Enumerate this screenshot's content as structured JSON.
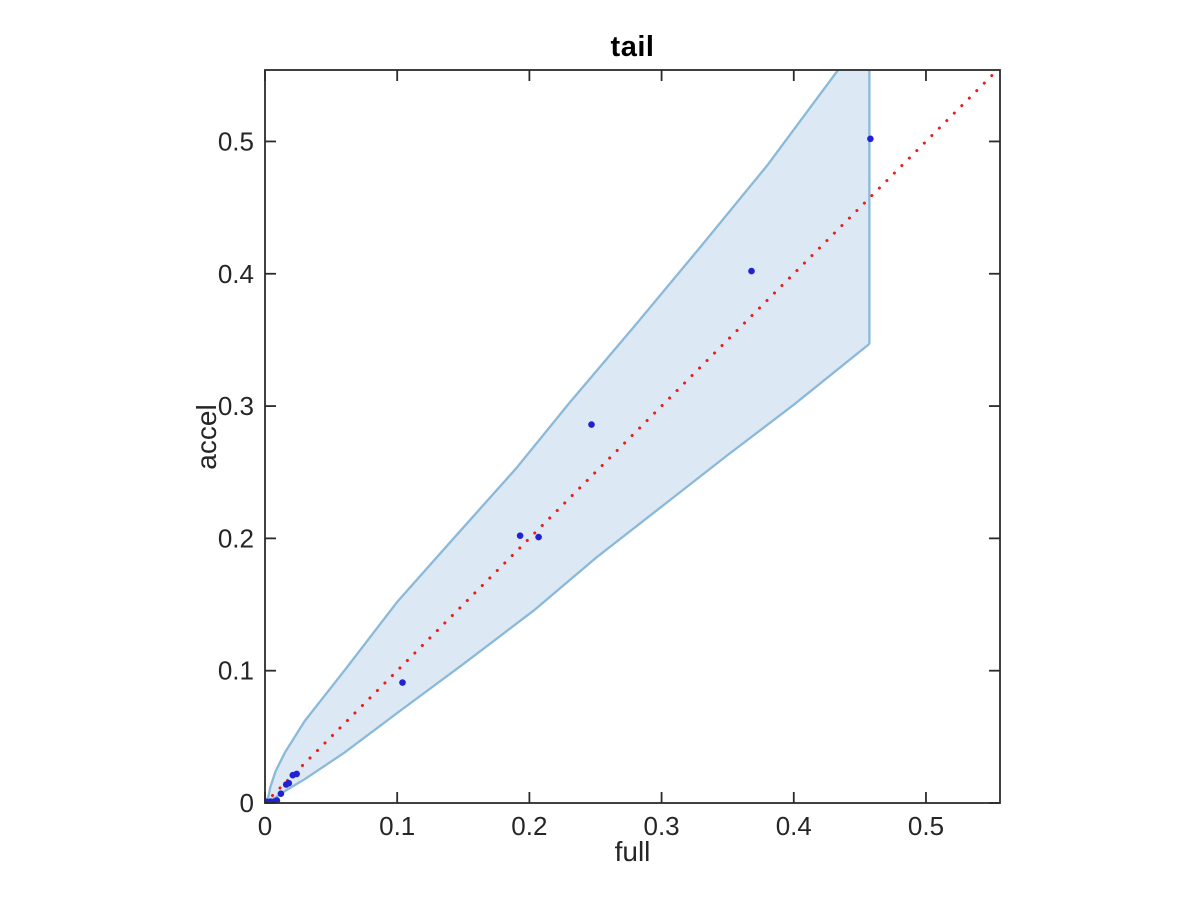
{
  "figure": {
    "background": "#ffffff"
  },
  "chart_data": {
    "type": "scatter",
    "title": "tail",
    "xlabel": "full",
    "ylabel": "accel",
    "xlim": [
      0,
      0.556
    ],
    "ylim": [
      0,
      0.554
    ],
    "grid": false,
    "x_ticks": [
      0,
      0.1,
      0.2,
      0.3,
      0.4,
      0.5
    ],
    "x_tick_labels": [
      "0",
      "0.1",
      "0.2",
      "0.3",
      "0.4",
      "0.5"
    ],
    "y_ticks": [
      0,
      0.1,
      0.2,
      0.3,
      0.4,
      0.5
    ],
    "y_tick_labels": [
      "0",
      "0.1",
      "0.2",
      "0.3",
      "0.4",
      "0.5"
    ],
    "points": [
      [
        0.001,
        0.001
      ],
      [
        0.004,
        0.001
      ],
      [
        0.007,
        0.001
      ],
      [
        0.009,
        0.002
      ],
      [
        0.012,
        0.007
      ],
      [
        0.016,
        0.014
      ],
      [
        0.018,
        0.015
      ],
      [
        0.021,
        0.021
      ],
      [
        0.024,
        0.022
      ],
      [
        0.104,
        0.091
      ],
      [
        0.193,
        0.202
      ],
      [
        0.207,
        0.201
      ],
      [
        0.247,
        0.286
      ],
      [
        0.368,
        0.402
      ],
      [
        0.458,
        0.502
      ]
    ],
    "identity_line": {
      "style": "dotted",
      "color": "#ea1c1c",
      "from": [
        0,
        0
      ],
      "to": [
        0.556,
        0.556
      ]
    },
    "band": {
      "fill": "#dce8f3",
      "edge": "#8ab9d9",
      "right_edge_x": 0.4572,
      "upper": [
        [
          0.002,
          0.002
        ],
        [
          0.004,
          0.012
        ],
        [
          0.008,
          0.024
        ],
        [
          0.015,
          0.038
        ],
        [
          0.03,
          0.062
        ],
        [
          0.06,
          0.1
        ],
        [
          0.1,
          0.152
        ],
        [
          0.14,
          0.197
        ],
        [
          0.19,
          0.253
        ],
        [
          0.23,
          0.302
        ],
        [
          0.28,
          0.361
        ],
        [
          0.33,
          0.421
        ],
        [
          0.38,
          0.482
        ],
        [
          0.4365,
          0.558
        ]
      ],
      "lower": [
        [
          0.002,
          0.002
        ],
        [
          0.008,
          0.004
        ],
        [
          0.015,
          0.009
        ],
        [
          0.03,
          0.018
        ],
        [
          0.06,
          0.038
        ],
        [
          0.1,
          0.068
        ],
        [
          0.15,
          0.105
        ],
        [
          0.204,
          0.146
        ],
        [
          0.25,
          0.185
        ],
        [
          0.3,
          0.224
        ],
        [
          0.35,
          0.263
        ],
        [
          0.4,
          0.301
        ],
        [
          0.4572,
          0.347
        ]
      ]
    },
    "colors": {
      "points": "#2222d4",
      "axis": "#2b2b2b"
    }
  }
}
